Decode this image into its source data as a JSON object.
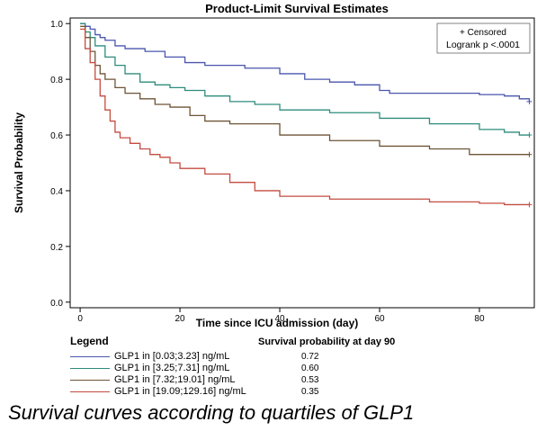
{
  "chart_data": {
    "type": "line",
    "title": "Product-Limit Survival Estimates",
    "xlabel": "Time since ICU admission (day)",
    "ylabel": "Survival Probability",
    "xlim": [
      -2,
      91
    ],
    "ylim": [
      -0.02,
      1.02
    ],
    "xticks": [
      "0",
      "20",
      "40",
      "60",
      "80"
    ],
    "yticks": [
      "0.0",
      "0.2",
      "0.4",
      "0.6",
      "0.8",
      "1.0"
    ],
    "grid": false,
    "inset_legend": {
      "line1": "+ Censored",
      "line2": "Logrank p <.0001",
      "placement": "top-right"
    },
    "series": [
      {
        "name": "GLP1 in [0.03;3.23] ng/mL",
        "color": "#4a56ad",
        "day90": "0.72",
        "x": [
          0,
          1,
          2,
          3,
          4,
          5,
          7,
          9,
          13,
          17,
          21,
          25,
          33,
          40,
          45,
          50,
          55,
          60,
          62,
          80,
          85,
          88,
          90
        ],
        "y": [
          1.0,
          0.99,
          0.98,
          0.96,
          0.95,
          0.94,
          0.92,
          0.91,
          0.9,
          0.88,
          0.86,
          0.85,
          0.84,
          0.82,
          0.8,
          0.79,
          0.78,
          0.76,
          0.75,
          0.745,
          0.74,
          0.73,
          0.72
        ]
      },
      {
        "name": "GLP1 in [3.25;7.31] ng/mL",
        "color": "#2f8c7c",
        "day90": "0.60",
        "x": [
          0,
          1,
          2,
          3,
          5,
          7,
          9,
          12,
          15,
          18,
          21,
          25,
          30,
          35,
          40,
          50,
          60,
          70,
          80,
          85,
          88,
          90
        ],
        "y": [
          1.0,
          0.97,
          0.95,
          0.92,
          0.88,
          0.85,
          0.82,
          0.79,
          0.78,
          0.77,
          0.76,
          0.74,
          0.72,
          0.71,
          0.69,
          0.68,
          0.66,
          0.64,
          0.62,
          0.61,
          0.6,
          0.6
        ]
      },
      {
        "name": "GLP1 in [7.32;19.01] ng/mL",
        "color": "#6e5436",
        "day90": "0.53",
        "x": [
          0,
          1,
          2,
          3,
          4,
          5,
          7,
          9,
          12,
          15,
          18,
          22,
          25,
          30,
          40,
          50,
          60,
          70,
          78,
          90
        ],
        "y": [
          0.99,
          0.95,
          0.9,
          0.85,
          0.82,
          0.8,
          0.77,
          0.75,
          0.73,
          0.71,
          0.7,
          0.67,
          0.65,
          0.64,
          0.6,
          0.58,
          0.56,
          0.55,
          0.53,
          0.53
        ]
      },
      {
        "name": "GLP1 in [19.09;129.16] ng/mL",
        "color": "#c44c40",
        "day90": "0.35",
        "x": [
          0,
          1,
          2,
          3,
          4,
          5,
          6,
          7,
          8,
          10,
          12,
          14,
          16,
          18,
          20,
          25,
          30,
          35,
          40,
          50,
          60,
          70,
          80,
          85,
          90
        ],
        "y": [
          0.98,
          0.91,
          0.86,
          0.8,
          0.74,
          0.69,
          0.65,
          0.61,
          0.59,
          0.57,
          0.55,
          0.53,
          0.52,
          0.5,
          0.48,
          0.46,
          0.43,
          0.4,
          0.38,
          0.37,
          0.37,
          0.36,
          0.355,
          0.35,
          0.35
        ]
      }
    ]
  },
  "legend": {
    "title": "Legend",
    "value_header": "Survival probability at day 90"
  },
  "caption": "Survival curves according to quartiles of GLP1"
}
